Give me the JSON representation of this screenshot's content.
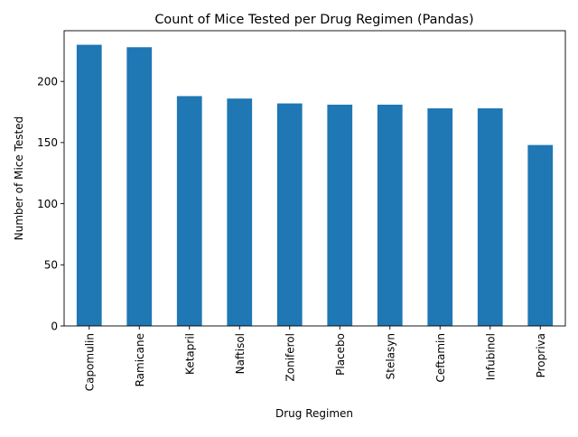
{
  "chart_data": {
    "type": "bar",
    "title": "Count of Mice Tested per Drug Regimen (Pandas)",
    "xlabel": "Drug Regimen",
    "ylabel": "Number of Mice Tested",
    "categories": [
      "Capomulin",
      "Ramicane",
      "Ketapril",
      "Naftisol",
      "Zoniferol",
      "Placebo",
      "Stelasyn",
      "Ceftamin",
      "Infubinol",
      "Propriva"
    ],
    "values": [
      230,
      228,
      188,
      186,
      182,
      181,
      181,
      178,
      178,
      148
    ],
    "ylim": [
      0,
      241.5
    ],
    "yticks": [
      0,
      50,
      100,
      150,
      200
    ],
    "grid": false,
    "legend": "none",
    "bar_color": "#1f77b4"
  }
}
